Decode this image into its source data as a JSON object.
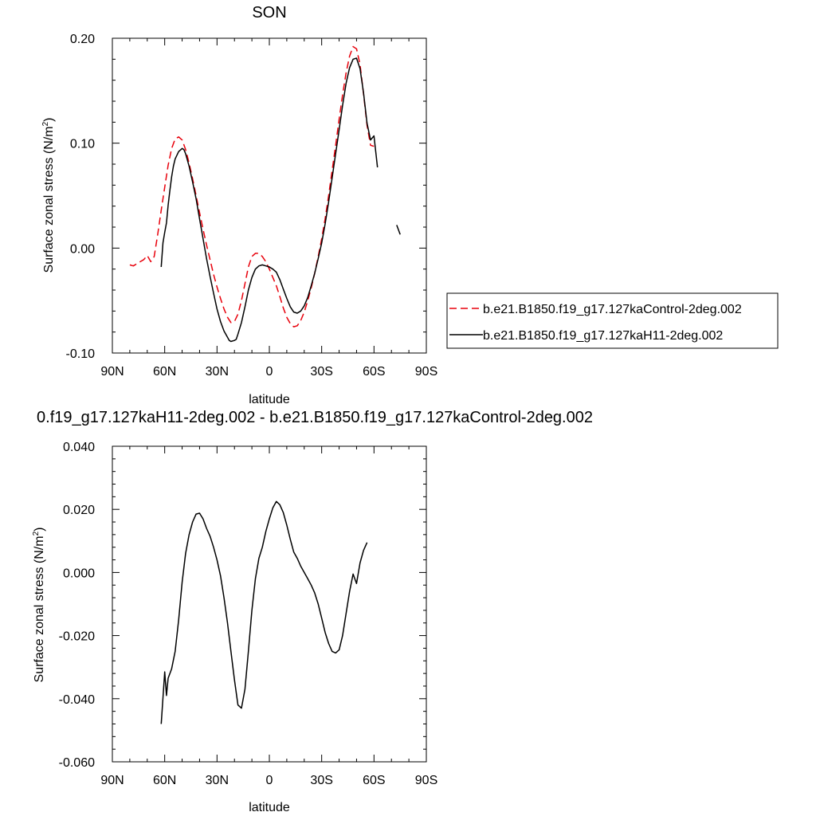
{
  "chart_data": [
    {
      "type": "line",
      "title": "SON",
      "xlabel": "latitude",
      "ylabel": "Surface zonal stress (N/m²)",
      "xlim": [
        90,
        -90
      ],
      "ylim": [
        -0.1,
        0.2
      ],
      "x_ticks": [
        90,
        60,
        30,
        0,
        -30,
        -60,
        -90
      ],
      "x_tick_labels": [
        "90N",
        "60N",
        "30N",
        "0",
        "30S",
        "60S",
        "90S"
      ],
      "y_ticks": [
        -0.1,
        0.0,
        0.1,
        0.2
      ],
      "y_tick_labels": [
        "-0.10",
        "0.00",
        "0.10",
        "0.20"
      ],
      "legend_position": "right",
      "series": [
        {
          "name": "b.e21.B1850.f19_g17.127kaControl-2deg.002",
          "color": "#e8000b",
          "dash": "dashed",
          "segments": [
            [
              [
                80,
                -0.016
              ],
              [
                78,
                -0.017
              ],
              [
                76,
                -0.015
              ],
              [
                74,
                -0.013
              ],
              [
                72,
                -0.011
              ],
              [
                70,
                -0.007
              ],
              [
                68,
                -0.013
              ],
              [
                66,
                -0.008
              ],
              [
                64,
                0.013
              ],
              [
                62,
                0.036
              ],
              [
                60,
                0.058
              ],
              [
                58,
                0.079
              ],
              [
                56,
                0.095
              ],
              [
                54,
                0.104
              ],
              [
                52,
                0.106
              ],
              [
                50,
                0.103
              ],
              [
                48,
                0.094
              ],
              [
                46,
                0.081
              ],
              [
                44,
                0.066
              ],
              [
                42,
                0.05
              ],
              [
                40,
                0.034
              ],
              [
                38,
                0.018
              ],
              [
                36,
                0.003
              ],
              [
                34,
                -0.011
              ],
              [
                32,
                -0.025
              ],
              [
                30,
                -0.037
              ],
              [
                28,
                -0.048
              ],
              [
                26,
                -0.058
              ],
              [
                24,
                -0.066
              ],
              [
                22,
                -0.071
              ],
              [
                20,
                -0.07
              ],
              [
                18,
                -0.063
              ],
              [
                16,
                -0.05
              ],
              [
                14,
                -0.034
              ],
              [
                12,
                -0.018
              ],
              [
                10,
                -0.008
              ],
              [
                8,
                -0.005
              ],
              [
                6,
                -0.005
              ],
              [
                4,
                -0.008
              ],
              [
                2,
                -0.013
              ],
              [
                0,
                -0.02
              ],
              [
                -2,
                -0.028
              ],
              [
                -4,
                -0.036
              ],
              [
                -6,
                -0.046
              ],
              [
                -8,
                -0.057
              ],
              [
                -10,
                -0.066
              ],
              [
                -12,
                -0.072
              ],
              [
                -14,
                -0.075
              ],
              [
                -16,
                -0.074
              ],
              [
                -18,
                -0.069
              ],
              [
                -20,
                -0.061
              ],
              [
                -22,
                -0.05
              ],
              [
                -24,
                -0.038
              ],
              [
                -26,
                -0.024
              ],
              [
                -28,
                -0.008
              ],
              [
                -30,
                0.009
              ],
              [
                -32,
                0.028
              ],
              [
                -34,
                0.05
              ],
              [
                -36,
                0.074
              ],
              [
                -38,
                0.098
              ],
              [
                -40,
                0.123
              ],
              [
                -42,
                0.146
              ],
              [
                -44,
                0.167
              ],
              [
                -46,
                0.183
              ],
              [
                -48,
                0.192
              ],
              [
                -50,
                0.19
              ],
              [
                -52,
                0.175
              ],
              [
                -54,
                0.147
              ],
              [
                -56,
                0.117
              ],
              [
                -58,
                0.098
              ],
              [
                -60,
                0.097
              ]
            ]
          ]
        },
        {
          "name": "b.e21.B1850.f19_g17.127kaH11-2deg.002",
          "color": "#000000",
          "dash": "solid",
          "segments": [
            [
              [
                62,
                -0.018
              ],
              [
                61,
                0.005
              ],
              [
                60,
                0.015
              ],
              [
                59,
                0.024
              ],
              [
                58,
                0.041
              ],
              [
                57,
                0.055
              ],
              [
                56,
                0.068
              ],
              [
                55,
                0.078
              ],
              [
                54,
                0.085
              ],
              [
                52,
                0.092
              ],
              [
                50,
                0.095
              ],
              [
                49,
                0.094
              ],
              [
                48,
                0.09
              ],
              [
                46,
                0.078
              ],
              [
                44,
                0.063
              ],
              [
                42,
                0.047
              ],
              [
                40,
                0.028
              ],
              [
                38,
                0.009
              ],
              [
                36,
                -0.01
              ],
              [
                34,
                -0.027
              ],
              [
                32,
                -0.043
              ],
              [
                30,
                -0.058
              ],
              [
                28,
                -0.07
              ],
              [
                26,
                -0.079
              ],
              [
                24,
                -0.085
              ],
              [
                23,
                -0.088
              ],
              [
                22,
                -0.089
              ],
              [
                20,
                -0.088
              ],
              [
                19,
                -0.087
              ],
              [
                18,
                -0.082
              ],
              [
                16,
                -0.071
              ],
              [
                14,
                -0.056
              ],
              [
                12,
                -0.04
              ],
              [
                10,
                -0.028
              ],
              [
                8,
                -0.02
              ],
              [
                6,
                -0.017
              ],
              [
                4,
                -0.016
              ],
              [
                2,
                -0.017
              ],
              [
                0,
                -0.018
              ],
              [
                -2,
                -0.02
              ],
              [
                -4,
                -0.023
              ],
              [
                -6,
                -0.03
              ],
              [
                -8,
                -0.039
              ],
              [
                -10,
                -0.048
              ],
              [
                -12,
                -0.056
              ],
              [
                -14,
                -0.061
              ],
              [
                -16,
                -0.062
              ],
              [
                -18,
                -0.06
              ],
              [
                -20,
                -0.055
              ],
              [
                -22,
                -0.047
              ],
              [
                -24,
                -0.036
              ],
              [
                -26,
                -0.024
              ],
              [
                -28,
                -0.01
              ],
              [
                -30,
                0.005
              ],
              [
                -32,
                0.023
              ],
              [
                -34,
                0.044
              ],
              [
                -36,
                0.067
              ],
              [
                -38,
                0.09
              ],
              [
                -40,
                0.113
              ],
              [
                -42,
                0.136
              ],
              [
                -44,
                0.157
              ],
              [
                -46,
                0.172
              ],
              [
                -48,
                0.18
              ],
              [
                -50,
                0.181
              ],
              [
                -52,
                0.171
              ],
              [
                -54,
                0.148
              ],
              [
                -56,
                0.119
              ],
              [
                -58,
                0.103
              ],
              [
                -59,
                0.105
              ],
              [
                -60,
                0.107
              ],
              [
                -61,
                0.092
              ],
              [
                -62,
                0.077
              ]
            ],
            [
              [
                -73,
                0.022
              ],
              [
                -75,
                0.013
              ]
            ]
          ]
        }
      ]
    },
    {
      "type": "line",
      "title": "0.f19_g17.127kaH11-2deg.002 - b.e21.B1850.f19_g17.127kaControl-2deg.002",
      "xlabel": "latitude",
      "ylabel": "Surface zonal stress (N/m²)",
      "xlim": [
        90,
        -90
      ],
      "ylim": [
        -0.06,
        0.04
      ],
      "x_ticks": [
        90,
        60,
        30,
        0,
        -30,
        -60,
        -90
      ],
      "x_tick_labels": [
        "90N",
        "60N",
        "30N",
        "0",
        "30S",
        "60S",
        "90S"
      ],
      "y_ticks": [
        -0.06,
        -0.04,
        -0.02,
        0.0,
        0.02,
        0.04
      ],
      "y_tick_labels": [
        "-0.060",
        "-0.040",
        "-0.020",
        "0.000",
        "0.020",
        "0.040"
      ],
      "series": [
        {
          "color": "#000000",
          "dash": "solid",
          "segments": [
            [
              [
                62,
                -0.048
              ],
              [
                60,
                -0.0315
              ],
              [
                59,
                -0.039
              ],
              [
                58,
                -0.0335
              ],
              [
                56,
                -0.0305
              ],
              [
                54,
                -0.025
              ],
              [
                52,
                -0.015
              ],
              [
                50,
                -0.003
              ],
              [
                48,
                0.006
              ],
              [
                46,
                0.012
              ],
              [
                44,
                0.016
              ],
              [
                42,
                0.0185
              ],
              [
                40,
                0.0188
              ],
              [
                38,
                0.017
              ],
              [
                36,
                0.014
              ],
              [
                34,
                0.0115
              ],
              [
                32,
                0.008
              ],
              [
                30,
                0.004
              ],
              [
                28,
                -0.001
              ],
              [
                26,
                -0.008
              ],
              [
                24,
                -0.016
              ],
              [
                22,
                -0.025
              ],
              [
                20,
                -0.034
              ],
              [
                18,
                -0.042
              ],
              [
                16,
                -0.043
              ],
              [
                14,
                -0.037
              ],
              [
                12,
                -0.025
              ],
              [
                10,
                -0.012
              ],
              [
                8,
                -0.002
              ],
              [
                6,
                0.0045
              ],
              [
                4,
                0.008
              ],
              [
                2,
                0.013
              ],
              [
                0,
                0.017
              ],
              [
                -2,
                0.0205
              ],
              [
                -4,
                0.0225
              ],
              [
                -6,
                0.0215
              ],
              [
                -8,
                0.019
              ],
              [
                -10,
                0.015
              ],
              [
                -12,
                0.0105
              ],
              [
                -14,
                0.0065
              ],
              [
                -16,
                0.0045
              ],
              [
                -18,
                0.002
              ],
              [
                -20,
                0.0
              ],
              [
                -22,
                -0.002
              ],
              [
                -24,
                -0.004
              ],
              [
                -26,
                -0.0065
              ],
              [
                -28,
                -0.01
              ],
              [
                -30,
                -0.0145
              ],
              [
                -32,
                -0.019
              ],
              [
                -34,
                -0.0225
              ],
              [
                -36,
                -0.025
              ],
              [
                -38,
                -0.0255
              ],
              [
                -40,
                -0.0245
              ],
              [
                -42,
                -0.02
              ],
              [
                -44,
                -0.013
              ],
              [
                -46,
                -0.006
              ],
              [
                -48,
                -0.0005
              ],
              [
                -50,
                -0.0035
              ],
              [
                -52,
                0.003
              ],
              [
                -54,
                0.007
              ],
              [
                -56,
                0.0095
              ]
            ]
          ]
        }
      ]
    }
  ]
}
